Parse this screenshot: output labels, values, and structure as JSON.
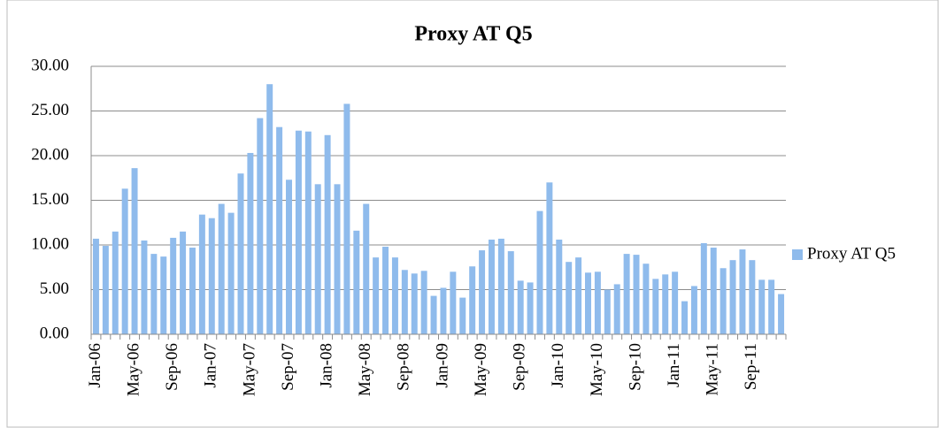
{
  "chart_data": {
    "type": "bar",
    "title": "Proxy AT Q5",
    "categories": [
      "Jan-06",
      null,
      null,
      null,
      "May-06",
      null,
      null,
      null,
      "Sep-06",
      null,
      null,
      null,
      "Jan-07",
      null,
      null,
      null,
      "May-07",
      null,
      null,
      null,
      "Sep-07",
      null,
      null,
      null,
      "Jan-08",
      null,
      null,
      null,
      "May-08",
      null,
      null,
      null,
      "Sep-08",
      null,
      null,
      null,
      "Jan-09",
      null,
      null,
      null,
      "May-09",
      null,
      null,
      null,
      "Sep-09",
      null,
      null,
      null,
      "Jan-10",
      null,
      null,
      null,
      "May-10",
      null,
      null,
      null,
      "Sep-10",
      null,
      null,
      null,
      "Jan-11",
      null,
      null,
      null,
      "May-11",
      null,
      null,
      null,
      "Sep-11",
      null,
      null,
      null
    ],
    "series": [
      {
        "name": "Proxy AT Q5",
        "color": "#8fbbec",
        "values": [
          10.7,
          9.9,
          11.5,
          16.3,
          18.6,
          10.5,
          9.0,
          8.7,
          10.8,
          11.5,
          9.7,
          13.4,
          13.0,
          14.6,
          13.6,
          18.0,
          20.3,
          24.2,
          28.0,
          23.2,
          17.3,
          22.8,
          22.7,
          16.8,
          22.3,
          16.8,
          25.8,
          11.6,
          14.6,
          8.6,
          9.8,
          8.6,
          7.2,
          6.8,
          7.1,
          4.3,
          5.2,
          7.0,
          4.1,
          7.6,
          9.4,
          10.6,
          10.7,
          9.3,
          6.0,
          5.8,
          13.8,
          17.0,
          10.6,
          8.1,
          8.6,
          6.9,
          7.0,
          5.0,
          5.6,
          9.0,
          8.9,
          7.9,
          6.2,
          6.7,
          7.0,
          3.7,
          5.4,
          10.2,
          9.7,
          7.4,
          8.3,
          9.5,
          8.3,
          6.1,
          6.1,
          4.5
        ]
      }
    ],
    "ylim": [
      0,
      30
    ],
    "yticks": [
      {
        "value": 0,
        "label": "0.00"
      },
      {
        "value": 5,
        "label": "5.00"
      },
      {
        "value": 10,
        "label": "10.00"
      },
      {
        "value": 15,
        "label": "15.00"
      },
      {
        "value": 20,
        "label": "20.00"
      },
      {
        "value": 25,
        "label": "25.00"
      },
      {
        "value": 30,
        "label": "30.00"
      }
    ],
    "grid": true,
    "legend": "right"
  }
}
